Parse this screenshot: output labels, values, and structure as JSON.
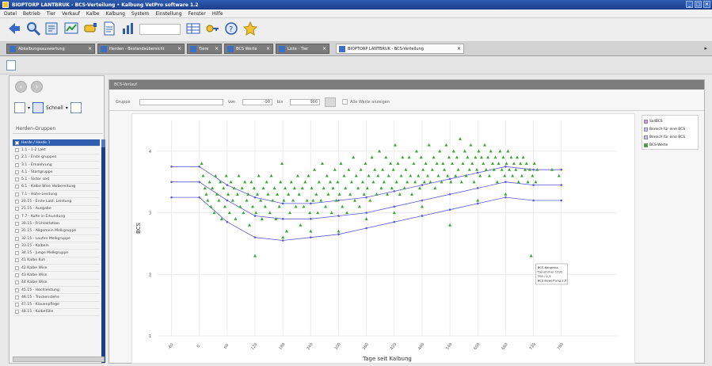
{
  "window": {
    "title": "BIOPTORP LANTBRUK - BCS-Verteilung • Kalbung   VetPro software 1.2",
    "controls": [
      "_",
      "□",
      "×"
    ]
  },
  "menu": [
    "Datei",
    "Betrieb",
    "Tier",
    "Verkauf",
    "Kalbe",
    "Kalbung",
    "System",
    "Einstellung",
    "Fenster",
    "Hilfe"
  ],
  "toolbar": {
    "icons": [
      "back-arrow-icon",
      "search-icon",
      "report-icon",
      "chart-icon",
      "cow-icon",
      "document-icon",
      "stats-icon",
      "table-icon",
      "key-icon",
      "help-icon",
      "star-icon"
    ],
    "field_value": ""
  },
  "tabs": [
    {
      "label": "Abkalbungsauswertung",
      "active": false
    },
    {
      "label": "Herden - Bestandsübersicht",
      "active": false
    },
    {
      "label": "Tiere",
      "active": false
    },
    {
      "label": "BCS Werte",
      "active": false
    },
    {
      "label": "Liste - Tier",
      "active": false
    },
    {
      "label": "BIOPTORP LANTBRUK - BCS-Verteilung",
      "active": true
    }
  ],
  "sidebar": {
    "title": "Herden-Gruppen",
    "tool_label": "Schnell",
    "groups": [
      "Herde / Herde 1",
      "1.1 - 1-2 Lakt",
      "2.1 - Erste gruppen",
      "3.1 - Ernaehrung",
      "4.1 - Startgruppe",
      "5.1 - Sister sort",
      "6.1 - Kalbe Wise Vorbereitung",
      "7.1 - Hohe-Leistung",
      "20.15 - Erste Lakt. Leistung",
      "21.15 - Ausgabe",
      "7.7 - Kuhe in Erkundung",
      "30.15 - Frühlaktation",
      "31.15 - Allgemein Melkgruppe",
      "32.15 - Laufen Melkgruppe",
      "33.15 - Kalbeln",
      "34.15 - Junge Melkgruppe",
      "41 Kalbe Kuh",
      "42 Kalbe Wise",
      "43 Kalbe Wise",
      "44 Kalbe Wise",
      "45.15 - Hochleistung",
      "46.15 - Trockenstehe",
      "47.15 - Klauenpflege",
      "48.15 - Kalbefälle"
    ]
  },
  "panel": {
    "header": "BCS-Verlauf",
    "filter": {
      "label_group": "Gruppe",
      "label_from": "von",
      "from_value": "-90",
      "label_to": "bis",
      "to_value": "900",
      "checkbox_label": "Alle Werte anzeigen"
    }
  },
  "colors": {
    "accent": "#2f5db0",
    "points": "#3aa62f",
    "curve": "#5b5bd6"
  },
  "chart_data": {
    "type": "scatter",
    "xlabel": "Tage seit Kalbung",
    "ylabel": "BCS",
    "ylim": [
      1,
      4.5
    ],
    "xlim": [
      -90,
      900
    ],
    "yticks": [
      1,
      2,
      3,
      4
    ],
    "xticks": [
      -60,
      0,
      60,
      120,
      180,
      240,
      300,
      360,
      420,
      480,
      540,
      600,
      660,
      720,
      780
    ],
    "grid": true,
    "legend_position": "top-right",
    "legend": [
      "SollBCS",
      "Bereich für eine BCS",
      "Bereich für eine BCS",
      "BCS-Werte"
    ],
    "series": [
      {
        "name": "SollBCS",
        "x": [
          -60,
          0,
          60,
          120,
          180,
          240,
          300,
          360,
          420,
          480,
          540,
          600,
          660,
          720,
          780
        ],
        "y": [
          3.5,
          3.5,
          3.2,
          2.95,
          2.9,
          2.9,
          2.95,
          3.0,
          3.1,
          3.2,
          3.3,
          3.4,
          3.5,
          3.45,
          3.45
        ]
      },
      {
        "name": "Bereich für eine BCS",
        "x": [
          -60,
          0,
          60,
          120,
          180,
          240,
          300,
          360,
          420,
          480,
          540,
          600,
          660,
          720,
          780
        ],
        "y": [
          3.75,
          3.75,
          3.45,
          3.25,
          3.15,
          3.15,
          3.2,
          3.25,
          3.35,
          3.45,
          3.55,
          3.65,
          3.75,
          3.7,
          3.7
        ]
      },
      {
        "name": "Bereich für eine BCS",
        "x": [
          -60,
          0,
          60,
          120,
          180,
          240,
          300,
          360,
          420,
          480,
          540,
          600,
          660,
          720,
          780
        ],
        "y": [
          3.25,
          3.25,
          2.85,
          2.6,
          2.55,
          2.6,
          2.65,
          2.75,
          2.85,
          2.95,
          3.05,
          3.15,
          3.25,
          3.2,
          3.2
        ]
      },
      {
        "name": "BCS-Werte",
        "points": [
          [
            5,
            3.8
          ],
          [
            8,
            3.6
          ],
          [
            12,
            3.4
          ],
          [
            15,
            3.3
          ],
          [
            18,
            3.2
          ],
          [
            22,
            3.5
          ],
          [
            25,
            3.1
          ],
          [
            28,
            3.4
          ],
          [
            32,
            3.0
          ],
          [
            35,
            3.6
          ],
          [
            38,
            3.3
          ],
          [
            42,
            3.2
          ],
          [
            45,
            3.5
          ],
          [
            48,
            2.9
          ],
          [
            52,
            3.4
          ],
          [
            55,
            3.1
          ],
          [
            58,
            3.6
          ],
          [
            62,
            3.3
          ],
          [
            65,
            3.0
          ],
          [
            68,
            3.5
          ],
          [
            72,
            3.2
          ],
          [
            75,
            3.4
          ],
          [
            78,
            2.9
          ],
          [
            82,
            3.3
          ],
          [
            85,
            3.6
          ],
          [
            88,
            3.1
          ],
          [
            92,
            3.4
          ],
          [
            95,
            3.0
          ],
          [
            98,
            3.5
          ],
          [
            102,
            3.2
          ],
          [
            105,
            3.3
          ],
          [
            108,
            2.8
          ],
          [
            112,
            3.5
          ],
          [
            115,
            3.1
          ],
          [
            118,
            3.4
          ],
          [
            122,
            3.0
          ],
          [
            125,
            3.3
          ],
          [
            128,
            3.6
          ],
          [
            132,
            3.2
          ],
          [
            135,
            2.9
          ],
          [
            138,
            3.4
          ],
          [
            142,
            3.1
          ],
          [
            145,
            3.5
          ],
          [
            148,
            3.3
          ],
          [
            152,
            3.0
          ],
          [
            155,
            3.6
          ],
          [
            158,
            3.2
          ],
          [
            162,
            3.4
          ],
          [
            165,
            2.9
          ],
          [
            168,
            3.3
          ],
          [
            172,
            3.1
          ],
          [
            175,
            3.5
          ],
          [
            178,
            3.8
          ],
          [
            182,
            3.2
          ],
          [
            185,
            3.4
          ],
          [
            188,
            2.7
          ],
          [
            192,
            3.3
          ],
          [
            195,
            3.0
          ],
          [
            198,
            3.5
          ],
          [
            202,
            3.2
          ],
          [
            205,
            3.4
          ],
          [
            208,
            3.1
          ],
          [
            212,
            3.6
          ],
          [
            215,
            3.3
          ],
          [
            218,
            2.8
          ],
          [
            222,
            3.4
          ],
          [
            225,
            3.1
          ],
          [
            228,
            3.5
          ],
          [
            232,
            3.2
          ],
          [
            235,
            3.6
          ],
          [
            238,
            3.0
          ],
          [
            242,
            3.4
          ],
          [
            245,
            3.2
          ],
          [
            248,
            3.7
          ],
          [
            252,
            3.3
          ],
          [
            255,
            3.0
          ],
          [
            258,
            3.5
          ],
          [
            262,
            3.2
          ],
          [
            265,
            3.8
          ],
          [
            268,
            3.4
          ],
          [
            272,
            3.1
          ],
          [
            275,
            3.6
          ],
          [
            278,
            3.3
          ],
          [
            282,
            3.5
          ],
          [
            285,
            3.0
          ],
          [
            288,
            3.4
          ],
          [
            292,
            3.7
          ],
          [
            295,
            3.2
          ],
          [
            298,
            3.5
          ],
          [
            302,
            3.3
          ],
          [
            305,
            3.8
          ],
          [
            308,
            3.1
          ],
          [
            312,
            3.6
          ],
          [
            315,
            3.4
          ],
          [
            318,
            3.0
          ],
          [
            322,
            3.7
          ],
          [
            325,
            3.3
          ],
          [
            328,
            3.5
          ],
          [
            332,
            3.9
          ],
          [
            335,
            3.2
          ],
          [
            338,
            3.6
          ],
          [
            342,
            3.4
          ],
          [
            345,
            3.1
          ],
          [
            348,
            3.7
          ],
          [
            352,
            3.5
          ],
          [
            355,
            3.3
          ],
          [
            358,
            3.8
          ],
          [
            362,
            3.4
          ],
          [
            365,
            3.6
          ],
          [
            368,
            3.2
          ],
          [
            372,
            3.9
          ],
          [
            375,
            3.5
          ],
          [
            378,
            3.7
          ],
          [
            382,
            3.3
          ],
          [
            385,
            3.6
          ],
          [
            388,
            4.0
          ],
          [
            392,
            3.4
          ],
          [
            395,
            3.7
          ],
          [
            398,
            3.5
          ],
          [
            402,
            3.9
          ],
          [
            405,
            3.3
          ],
          [
            408,
            3.6
          ],
          [
            412,
            3.8
          ],
          [
            415,
            3.4
          ],
          [
            418,
            3.7
          ],
          [
            422,
            4.1
          ],
          [
            425,
            3.5
          ],
          [
            428,
            3.8
          ],
          [
            432,
            3.3
          ],
          [
            435,
            3.6
          ],
          [
            438,
            3.9
          ],
          [
            442,
            3.4
          ],
          [
            445,
            3.7
          ],
          [
            448,
            3.5
          ],
          [
            452,
            3.9
          ],
          [
            455,
            3.6
          ],
          [
            458,
            3.3
          ],
          [
            462,
            3.8
          ],
          [
            465,
            3.5
          ],
          [
            468,
            4.0
          ],
          [
            472,
            3.6
          ],
          [
            475,
            3.4
          ],
          [
            478,
            3.9
          ],
          [
            482,
            3.7
          ],
          [
            485,
            3.5
          ],
          [
            488,
            3.8
          ],
          [
            492,
            3.6
          ],
          [
            495,
            4.1
          ],
          [
            498,
            3.5
          ],
          [
            502,
            3.7
          ],
          [
            505,
            3.9
          ],
          [
            508,
            3.4
          ],
          [
            512,
            3.8
          ],
          [
            515,
            3.6
          ],
          [
            518,
            4.0
          ],
          [
            522,
            3.5
          ],
          [
            525,
            3.8
          ],
          [
            528,
            3.7
          ],
          [
            532,
            4.1
          ],
          [
            535,
            3.6
          ],
          [
            538,
            3.9
          ],
          [
            542,
            3.5
          ],
          [
            545,
            3.8
          ],
          [
            548,
            4.0
          ],
          [
            552,
            3.6
          ],
          [
            555,
            3.9
          ],
          [
            558,
            3.7
          ],
          [
            562,
            4.2
          ],
          [
            565,
            3.5
          ],
          [
            568,
            3.8
          ],
          [
            572,
            4.0
          ],
          [
            575,
            3.6
          ],
          [
            578,
            3.9
          ],
          [
            582,
            3.7
          ],
          [
            585,
            4.1
          ],
          [
            588,
            3.8
          ],
          [
            592,
            3.5
          ],
          [
            595,
            3.9
          ],
          [
            598,
            3.7
          ],
          [
            602,
            4.0
          ],
          [
            605,
            3.6
          ],
          [
            608,
            3.9
          ],
          [
            612,
            3.8
          ],
          [
            615,
            4.1
          ],
          [
            618,
            3.7
          ],
          [
            622,
            3.9
          ],
          [
            625,
            3.6
          ],
          [
            628,
            4.0
          ],
          [
            632,
            3.8
          ],
          [
            635,
            3.7
          ],
          [
            638,
            3.9
          ],
          [
            642,
            3.5
          ],
          [
            645,
            3.8
          ],
          [
            648,
            4.0
          ],
          [
            652,
            3.7
          ],
          [
            655,
            3.9
          ],
          [
            658,
            3.6
          ],
          [
            662,
            3.8
          ],
          [
            665,
            4.0
          ],
          [
            668,
            3.7
          ],
          [
            672,
            3.9
          ],
          [
            675,
            3.6
          ],
          [
            678,
            3.8
          ],
          [
            682,
            3.7
          ],
          [
            685,
            3.9
          ],
          [
            688,
            3.5
          ],
          [
            692,
            3.8
          ],
          [
            695,
            3.6
          ],
          [
            698,
            3.9
          ],
          [
            702,
            3.7
          ],
          [
            705,
            3.8
          ],
          [
            708,
            3.5
          ],
          [
            712,
            3.7
          ],
          [
            715,
            2.3
          ],
          [
            718,
            3.6
          ],
          [
            722,
            3.8
          ],
          [
            725,
            3.5
          ],
          [
            728,
            3.7
          ],
          [
            760,
            3.7
          ],
          [
            775,
            3.6
          ],
          [
            120,
            2.3
          ],
          [
            180,
            2.6
          ],
          [
            240,
            2.7
          ],
          [
            300,
            2.7
          ],
          [
            360,
            2.9
          ],
          [
            420,
            3.0
          ],
          [
            480,
            3.1
          ],
          [
            540,
            2.8
          ],
          [
            600,
            3.2
          ],
          [
            660,
            3.3
          ]
        ]
      }
    ],
    "tooltip": [
      "BCS-Kongress",
      "Tierummer 1032",
      "700 / 2,5",
      "BCS Bewertung 2,5"
    ]
  }
}
